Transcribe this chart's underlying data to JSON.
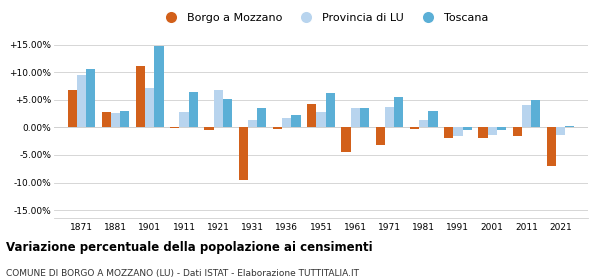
{
  "years": [
    1871,
    1881,
    1901,
    1911,
    1921,
    1931,
    1936,
    1951,
    1961,
    1971,
    1981,
    1991,
    2001,
    2011,
    2021
  ],
  "borgo": [
    6.8,
    2.8,
    11.2,
    -0.1,
    -0.5,
    -9.5,
    -0.3,
    4.3,
    -4.5,
    -3.2,
    -0.3,
    -1.9,
    -1.9,
    -1.5,
    -7.0
  ],
  "provincia": [
    9.5,
    2.7,
    7.2,
    2.8,
    6.7,
    1.3,
    1.7,
    2.8,
    3.5,
    3.7,
    1.4,
    -1.5,
    -1.4,
    4.0,
    -1.3
  ],
  "toscana": [
    10.5,
    2.9,
    14.7,
    6.5,
    5.2,
    3.5,
    2.2,
    6.2,
    3.5,
    5.5,
    3.0,
    -0.5,
    -0.5,
    5.0,
    0.2
  ],
  "borgo_color": "#d2601a",
  "provincia_color": "#b8d4ee",
  "toscana_color": "#5bafd6",
  "title": "Variazione percentuale della popolazione ai censimenti",
  "subtitle": "COMUNE DI BORGO A MOZZANO (LU) - Dati ISTAT - Elaborazione TUTTITALIA.IT",
  "ylim": [
    -16.5,
    16.5
  ],
  "yticks": [
    -15,
    -10,
    -5,
    0,
    5,
    10,
    15
  ],
  "ytick_labels": [
    "-15.00%",
    "-10.00%",
    "-5.00%",
    "0.00%",
    "+5.00%",
    "+10.00%",
    "+15.00%"
  ],
  "bar_width": 0.27,
  "legend_borgo": "Borgo a Mozzano",
  "legend_provincia": "Provincia di LU",
  "legend_toscana": "Toscana"
}
